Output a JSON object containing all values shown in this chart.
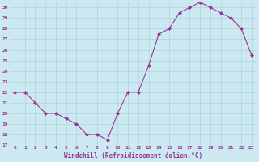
{
  "x": [
    0,
    1,
    2,
    3,
    4,
    5,
    6,
    7,
    8,
    9,
    10,
    11,
    12,
    13,
    14,
    15,
    16,
    17,
    18,
    19,
    20,
    21,
    22,
    23
  ],
  "y": [
    22,
    22,
    21,
    20,
    20,
    19.5,
    19,
    18,
    18,
    17.5,
    20,
    22,
    22,
    24.5,
    27.5,
    28,
    29.5,
    30,
    30.5,
    30,
    29.5,
    29,
    28,
    25.5
  ],
  "line_color": "#993399",
  "marker_color": "#993399",
  "bg_color": "#cce8f0",
  "grid_color": "#b0d8e0",
  "xlabel": "Windchill (Refroidissement éolien,°C)",
  "xlabel_color": "#993399",
  "ylim": [
    17,
    30.5
  ],
  "xlim": [
    -0.5,
    23.5
  ],
  "yticks": [
    17,
    18,
    19,
    20,
    21,
    22,
    23,
    24,
    25,
    26,
    27,
    28,
    29,
    30
  ],
  "xtick_labels": [
    "0",
    "1",
    "2",
    "3",
    "4",
    "5",
    "6",
    "7",
    "8",
    "9",
    "10",
    "11",
    "12",
    "13",
    "14",
    "15",
    "16",
    "17",
    "18",
    "19",
    "20",
    "21",
    "22",
    "23"
  ]
}
